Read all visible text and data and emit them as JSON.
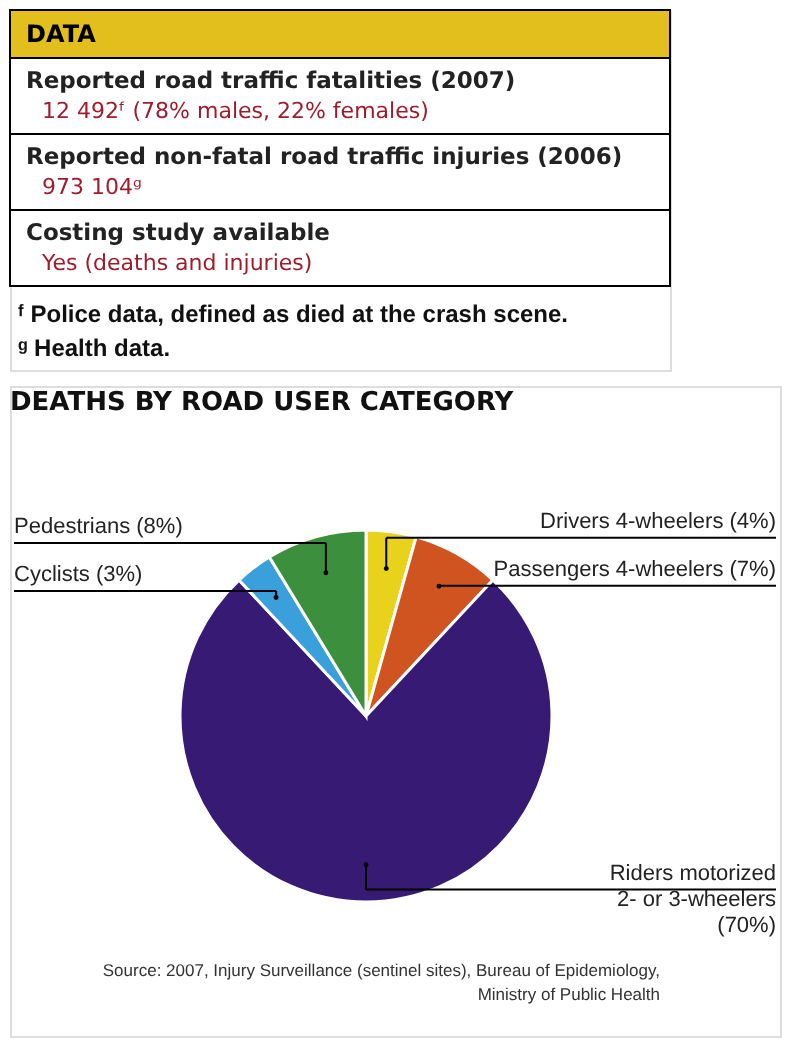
{
  "chart_data": [
    {
      "type": "other",
      "title": "DATA",
      "annotations": [
        "Reported road traffic fatalities (2007)",
        "12 492ᶠ (78% males, 22% females)",
        "Reported non-fatal road traffic injuries (2006)",
        "973 104ᵍ",
        "Costing study available",
        "Yes (deaths and injuries)",
        "ᶠ Police data, defined as died at the crash scene.",
        "ᵍ Health data."
      ]
    },
    {
      "type": "pie",
      "title": "DEATHS BY ROAD USER CATEGORY",
      "categories": [
        "Drivers 4-wheelers",
        "Passengers 4-wheelers",
        "Riders motorized 2- or 3-wheelers",
        "Cyclists",
        "Pedestrians"
      ],
      "values": [
        4,
        7,
        70,
        3,
        8
      ],
      "value_labels": [
        "(4%)",
        "(7%)",
        "(70%)",
        "(3%)",
        "(8%)"
      ],
      "colors": [
        "#e8d21c",
        "#d0541f",
        "#361a74",
        "#3aa0dc",
        "#3c8f3c"
      ],
      "annotations": [
        "Source: 2007, Injury Surveillance (sentinel sites), Bureau of Epidemiology,",
        "Ministry of Public Health"
      ]
    }
  ]
}
